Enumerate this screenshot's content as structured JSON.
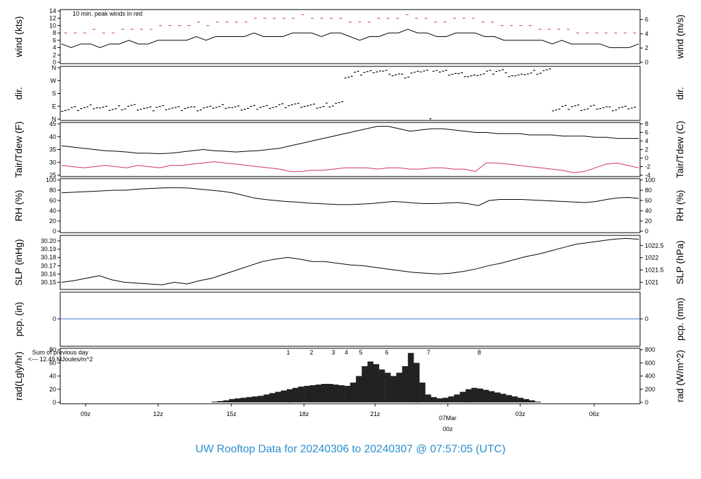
{
  "title": "UW Rooftop Data for 20240306  to  20240307 @ 07:57:05  (UTC)",
  "colors": {
    "line": "#000000",
    "dew": "#d03060",
    "precip": "#3a6fcf",
    "annot": "#a020f0",
    "title": "#2a8fd0",
    "date": "#d03060"
  },
  "chart_data": [
    {
      "type": "line",
      "ylabel": "wind (kts)",
      "ylabel_right": "wind (m/s)",
      "ylim": [
        0,
        14
      ],
      "yticks": [
        "0",
        "2",
        "4",
        "6",
        "8",
        "10",
        "12",
        "14"
      ],
      "yticks_right": [
        "0",
        "2",
        "4",
        "6"
      ],
      "annotation": "10 min. peak winds in red",
      "series": [
        {
          "values": [
            5,
            4,
            5,
            5,
            4,
            5,
            5,
            6,
            5,
            5,
            6,
            6,
            6,
            6,
            7,
            6,
            7,
            7,
            7,
            7,
            8,
            7,
            7,
            7,
            8,
            8,
            8,
            7,
            8,
            8,
            7,
            6,
            7,
            7,
            8,
            8,
            9,
            8,
            8,
            7,
            7,
            8,
            8,
            8,
            7,
            7,
            6,
            6,
            6,
            6,
            6,
            5,
            6,
            5,
            5,
            5,
            5,
            4,
            4,
            4,
            5
          ]
        },
        {
          "values": [
            8,
            8,
            8,
            9,
            8,
            8,
            9,
            9,
            9,
            9,
            10,
            10,
            10,
            10,
            11,
            10,
            11,
            11,
            11,
            11,
            12,
            12,
            12,
            12,
            12,
            13,
            12,
            12,
            12,
            12,
            11,
            11,
            11,
            12,
            12,
            12,
            13,
            12,
            12,
            11,
            11,
            12,
            12,
            12,
            11,
            11,
            10,
            10,
            10,
            10,
            9,
            9,
            9,
            9,
            8,
            8,
            8,
            8,
            8,
            8,
            8
          ]
        }
      ]
    },
    {
      "type": "scatter",
      "ylabel": "dir.",
      "ylabel_right": "dir.",
      "yticks": [
        "N",
        "E",
        "S",
        "W",
        "N"
      ],
      "series": [
        {
          "values": [
            70,
            75,
            80,
            85,
            75,
            70,
            80,
            90,
            75,
            70,
            85,
            80,
            75,
            80,
            70,
            75,
            85,
            90,
            80,
            75,
            80,
            85,
            90,
            95,
            100,
            95,
            90,
            85,
            100,
            110,
            300,
            320,
            330,
            340,
            330,
            310,
            300,
            320,
            340,
            350,
            330,
            320,
            310,
            300,
            320,
            330,
            340,
            310,
            300,
            320,
            330,
            340,
            70,
            80,
            90,
            75,
            85,
            80,
            70,
            75,
            80
          ]
        }
      ]
    },
    {
      "type": "line",
      "ylabel": "Tair/Tdew (F)",
      "ylabel_right": "Tair/Tdew (C)",
      "ylim": [
        25,
        46
      ],
      "yticks": [
        "25",
        "30",
        "35",
        "40",
        "45"
      ],
      "yticks_right": [
        "-4",
        "-2",
        "0",
        "2",
        "4",
        "6",
        "8"
      ],
      "series": [
        {
          "values": [
            37,
            36.5,
            36,
            35.5,
            35,
            34.8,
            34.5,
            34,
            34,
            33.8,
            34,
            34.5,
            35,
            35.5,
            35,
            34.8,
            34.5,
            34.8,
            35,
            35.5,
            36,
            37,
            38,
            39,
            40,
            41,
            42,
            43,
            44,
            45,
            45,
            44,
            43,
            43.5,
            44,
            44,
            43.5,
            43,
            42.5,
            42.5,
            42,
            42,
            42,
            41.5,
            41.5,
            41.5,
            41,
            41,
            41,
            40.5,
            40.5,
            40,
            40,
            40
          ]
        },
        {
          "values": [
            29,
            28.5,
            28,
            28.5,
            29,
            28.5,
            28,
            29,
            28.5,
            28,
            29,
            29,
            29.5,
            30,
            30.5,
            30,
            29.5,
            29,
            28.5,
            28,
            27.5,
            26.5,
            26.5,
            27,
            27,
            27.5,
            28,
            28,
            28,
            27.5,
            28,
            28,
            27.5,
            27.5,
            28,
            28,
            27.5,
            27.5,
            26.5,
            30,
            30,
            29.5,
            29,
            28.5,
            28,
            27.5,
            27,
            26,
            26.5,
            28,
            29.5,
            30,
            29,
            28
          ]
        }
      ]
    },
    {
      "type": "line",
      "ylabel": "RH (%)",
      "ylabel_right": "RH (%)",
      "ylim": [
        0,
        100
      ],
      "yticks": [
        "0",
        "20",
        "40",
        "60",
        "80",
        "100"
      ],
      "yticks_right": [
        "0",
        "20",
        "40",
        "60",
        "80",
        "100"
      ],
      "series": [
        {
          "values": [
            75,
            76,
            77,
            78,
            79,
            80,
            80,
            82,
            83,
            84,
            85,
            85,
            84,
            82,
            80,
            78,
            75,
            70,
            65,
            62,
            60,
            58,
            57,
            55,
            54,
            53,
            52,
            52,
            53,
            54,
            56,
            58,
            57,
            55,
            54,
            54,
            55,
            56,
            54,
            50,
            60,
            62,
            62,
            62,
            61,
            60,
            59,
            58,
            57,
            56,
            58,
            62,
            65,
            66,
            64
          ]
        }
      ]
    },
    {
      "type": "line",
      "ylabel": "SLP (inHg)",
      "ylabel_right": "SLP (hPa)",
      "ylim": [
        30.143,
        30.205
      ],
      "yticks": [
        "30.15",
        "30.16",
        "30.17",
        "30.18",
        "30.19",
        "30.20"
      ],
      "yticks_right": [
        "1021",
        "1021.5",
        "1022",
        "1022.5"
      ],
      "series": [
        {
          "values": [
            30.15,
            30.152,
            30.155,
            30.158,
            30.153,
            30.15,
            30.149,
            30.148,
            30.147,
            30.15,
            30.148,
            30.152,
            30.155,
            30.16,
            30.165,
            30.17,
            30.175,
            30.178,
            30.18,
            30.178,
            30.175,
            30.175,
            30.173,
            30.171,
            30.17,
            30.168,
            30.166,
            30.164,
            30.162,
            30.161,
            30.16,
            30.161,
            30.163,
            30.166,
            30.17,
            30.173,
            30.177,
            30.181,
            30.184,
            30.188,
            30.192,
            30.196,
            30.198,
            30.2,
            30.202,
            30.203,
            30.202
          ]
        }
      ]
    },
    {
      "type": "line",
      "ylabel": "pcp. (in)",
      "ylabel_right": "pcp. (mm)",
      "yticks": [
        "0"
      ],
      "yticks_right": [
        "0"
      ],
      "series": [
        {
          "values": [
            0,
            0
          ]
        }
      ]
    },
    {
      "type": "area",
      "ylabel": "rad(Lgly/hr)",
      "ylabel_right": "rad (W/m^2)",
      "ylim": [
        0,
        80
      ],
      "yticks": [
        "0",
        "20",
        "40",
        "60",
        "80"
      ],
      "yticks_right": [
        "0",
        "200",
        "400",
        "600",
        "800"
      ],
      "annotation": "Sum of previous day",
      "annotation2": "<--- 12.49 MJoules/m^2",
      "markers": [
        "1",
        "2",
        "3",
        "4",
        "5",
        "6",
        "7",
        "8"
      ],
      "series": [
        {
          "values": [
            0,
            0,
            0,
            0,
            0,
            0,
            0,
            0,
            0,
            0,
            0,
            0,
            0,
            0,
            0,
            0,
            0,
            0,
            0,
            0,
            0,
            0,
            0,
            0,
            0,
            0,
            1,
            2,
            3,
            5,
            6,
            7,
            8,
            9,
            10,
            12,
            14,
            16,
            18,
            20,
            22,
            24,
            25,
            26,
            27,
            28,
            28,
            27,
            26,
            25,
            30,
            40,
            55,
            62,
            58,
            50,
            45,
            40,
            45,
            55,
            75,
            60,
            30,
            12,
            8,
            6,
            7,
            9,
            12,
            16,
            20,
            22,
            21,
            19,
            17,
            15,
            13,
            11,
            9,
            7,
            5,
            3,
            1,
            0,
            0,
            0,
            0,
            0,
            0,
            0,
            0,
            0,
            0,
            0,
            0,
            0,
            0,
            0,
            0,
            0
          ]
        }
      ]
    }
  ],
  "xticks": [
    "09z",
    "12z",
    "15z",
    "18z",
    "21z",
    "03z",
    "06z"
  ],
  "date_label": "07Mar",
  "date_sub": "00z"
}
